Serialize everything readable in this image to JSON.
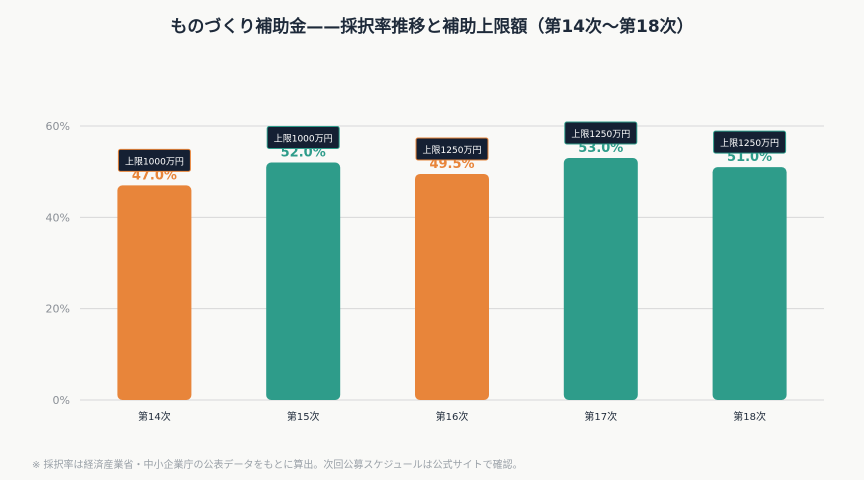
{
  "chart_data": {
    "type": "bar",
    "title": "ものづくり補助金——採択率推移と補助上限額（第14次〜第18次）",
    "categories": [
      "第14次",
      "第15次",
      "第16次",
      "第17次",
      "第18次"
    ],
    "values": [
      47.0,
      52.0,
      49.5,
      53.0,
      51.0
    ],
    "value_labels": [
      "47.0%",
      "52.0%",
      "49.5%",
      "53.0%",
      "51.0%"
    ],
    "callouts": [
      "上限1000万円",
      "上限1000万円",
      "上限1250万円",
      "上限1250万円",
      "上限1250万円"
    ],
    "bar_colors": [
      "#e8853a",
      "#2e9c8a",
      "#e8853a",
      "#2e9c8a",
      "#2e9c8a"
    ],
    "ylim": [
      0,
      60
    ],
    "yticks": [
      0,
      20,
      40,
      60
    ],
    "ytick_labels": [
      "0%",
      "20%",
      "40%",
      "60%"
    ],
    "grid": true,
    "xlabel": "",
    "ylabel": ""
  },
  "footnote": "※ 採択率は経済産業省・中小企業庁の公表データをもとに算出。次回公募スケジュールは公式サイトで確認。",
  "colors": {
    "callout_bg": "#152033",
    "gridline": "#d8d8d8",
    "tick_text": "#8a8f96",
    "category_text": "#1e2a3a"
  }
}
